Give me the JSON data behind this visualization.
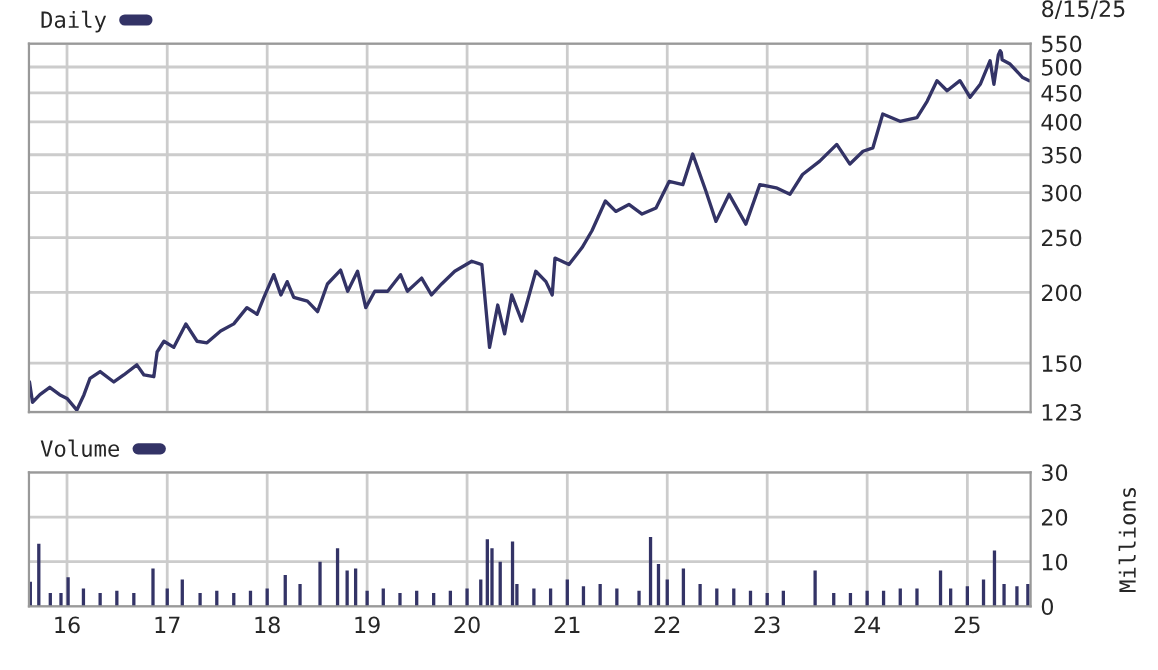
{
  "chart_data": [
    {
      "type": "line",
      "legend": "top left",
      "log": "y",
      "grid": true,
      "tick_labels": "y",
      "marker": "none",
      "line_style": "solid",
      "annotations": [
        "8/15/25"
      ],
      "xlim": [
        "2015-08-15",
        "2025-08-20"
      ],
      "xticks": [
        {
          "value": "2016-01-01",
          "label": null
        },
        {
          "value": "2017-01-01",
          "label": null
        },
        {
          "value": "2018-01-01",
          "label": null
        },
        {
          "value": "2019-01-01",
          "label": null
        },
        {
          "value": "2020-01-01",
          "label": null
        },
        {
          "value": "2021-01-01",
          "label": null
        },
        {
          "value": "2022-01-01",
          "label": null
        },
        {
          "value": "2023-01-01",
          "label": null
        },
        {
          "value": "2024-01-01",
          "label": null
        },
        {
          "value": "2025-01-01",
          "label": null
        }
      ],
      "ylim": [
        123,
        550
      ],
      "yticks": [
        123,
        150,
        200,
        250,
        300,
        350,
        400,
        450,
        500,
        550
      ],
      "series": [
        {
          "name": "Daily",
          "color": "#333366",
          "x": [
            "2015-08-17",
            "2015-08-28",
            "2015-09-24",
            "2015-10-30",
            "2015-12-05",
            "2016-01-01",
            "2016-02-06",
            "2016-03-03",
            "2016-03-25",
            "2016-05-01",
            "2016-06-20",
            "2016-07-26",
            "2016-09-12",
            "2016-10-08",
            "2016-11-13",
            "2016-11-25",
            "2016-12-20",
            "2017-01-25",
            "2017-03-10",
            "2017-04-20",
            "2017-05-26",
            "2017-07-15",
            "2017-09-01",
            "2017-10-19",
            "2017-11-25",
            "2017-12-20",
            "2018-01-25",
            "2018-02-20",
            "2018-03-15",
            "2018-04-08",
            "2018-05-28",
            "2018-07-04",
            "2018-08-09",
            "2018-09-26",
            "2018-10-22",
            "2018-11-27",
            "2018-12-27",
            "2019-01-29",
            "2019-03-17",
            "2019-05-03",
            "2019-05-28",
            "2019-07-19",
            "2019-08-24",
            "2019-09-30",
            "2019-11-17",
            "2020-01-18",
            "2020-02-24",
            "2020-03-23",
            "2020-04-22",
            "2020-05-17",
            "2020-06-12",
            "2020-07-19",
            "2020-09-08",
            "2020-10-15",
            "2020-11-07",
            "2020-11-17",
            "2021-01-07",
            "2021-02-24",
            "2021-04-01",
            "2021-05-20",
            "2021-06-27",
            "2021-08-14",
            "2021-10-01",
            "2021-11-21",
            "2022-01-08",
            "2022-02-27",
            "2022-04-04",
            "2022-05-22",
            "2022-06-28",
            "2022-08-15",
            "2022-10-15",
            "2022-12-05",
            "2023-02-03",
            "2023-03-25",
            "2023-05-10",
            "2023-07-12",
            "2023-09-12",
            "2023-10-30",
            "2023-12-17",
            "2024-01-22",
            "2024-02-27",
            "2024-04-30",
            "2024-07-01",
            "2024-08-07",
            "2024-09-12",
            "2024-10-19",
            "2024-12-05",
            "2025-01-11",
            "2025-02-17",
            "2025-03-25",
            "2025-04-08",
            "2025-04-24",
            "2025-05-01",
            "2025-05-05",
            "2025-05-08",
            "2025-06-06",
            "2025-07-22",
            "2025-08-15"
          ],
          "values": [
            139,
            128,
            132,
            136,
            132,
            130,
            124,
            132,
            141,
            145,
            139,
            143,
            149,
            143,
            142,
            157,
            164,
            160,
            176,
            164,
            163,
            171,
            176,
            188,
            183,
            196,
            215,
            198,
            209,
            196,
            193,
            185,
            207,
            219,
            201,
            218,
            188,
            201,
            201,
            215,
            201,
            212,
            198,
            207,
            218,
            227,
            224,
            160,
            190,
            169,
            198,
            178,
            218,
            209,
            198,
            230,
            224,
            240,
            257,
            290,
            278,
            286,
            275,
            282,
            314,
            310,
            351,
            302,
            267,
            298,
            264,
            310,
            306,
            298,
            323,
            341,
            365,
            337,
            355,
            360,
            413,
            401,
            407,
            435,
            473,
            454,
            473,
            442,
            466,
            513,
            466,
            525,
            534,
            530,
            515,
            506,
            479,
            473
          ]
        }
      ]
    },
    {
      "type": "bar",
      "legend": "top left",
      "grid": true,
      "ylabel": "Millions",
      "xlim": [
        "2015-08-15",
        "2025-08-20"
      ],
      "xticks": [
        {
          "value": "2016-01-01",
          "label": "16"
        },
        {
          "value": "2017-01-01",
          "label": "17"
        },
        {
          "value": "2018-01-01",
          "label": "18"
        },
        {
          "value": "2019-01-01",
          "label": "19"
        },
        {
          "value": "2020-01-01",
          "label": "20"
        },
        {
          "value": "2021-01-01",
          "label": "21"
        },
        {
          "value": "2022-01-01",
          "label": "22"
        },
        {
          "value": "2023-01-01",
          "label": "23"
        },
        {
          "value": "2024-01-01",
          "label": "24"
        },
        {
          "value": "2025-01-01",
          "label": "25"
        }
      ],
      "ylim": [
        0,
        30
      ],
      "yticks": [
        0,
        10,
        20,
        30
      ],
      "series": [
        {
          "name": "Volume",
          "color": "#333366",
          "x": [
            "2015-08-20",
            "2015-09-20",
            "2015-11-01",
            "2015-12-10",
            "2016-01-05",
            "2016-03-01",
            "2016-05-01",
            "2016-07-01",
            "2016-09-01",
            "2016-11-10",
            "2017-01-01",
            "2017-02-25",
            "2017-05-01",
            "2017-07-01",
            "2017-09-01",
            "2017-11-01",
            "2018-01-01",
            "2018-03-08",
            "2018-05-01",
            "2018-07-13",
            "2018-09-15",
            "2018-10-20",
            "2018-11-20",
            "2019-01-01",
            "2019-03-01",
            "2019-05-01",
            "2019-07-01",
            "2019-09-01",
            "2019-11-01",
            "2020-01-01",
            "2020-02-20",
            "2020-03-15",
            "2020-04-01",
            "2020-05-01",
            "2020-06-15",
            "2020-07-01",
            "2020-09-01",
            "2020-11-01",
            "2021-01-01",
            "2021-03-01",
            "2021-05-01",
            "2021-07-01",
            "2021-09-20",
            "2021-11-01",
            "2021-11-30",
            "2022-01-01",
            "2022-03-01",
            "2022-05-01",
            "2022-07-01",
            "2022-09-01",
            "2022-11-01",
            "2023-01-01",
            "2023-03-01",
            "2023-06-25",
            "2023-09-01",
            "2023-11-01",
            "2024-01-01",
            "2024-03-01",
            "2024-05-01",
            "2024-07-01",
            "2024-09-25",
            "2024-11-01",
            "2025-01-01",
            "2025-03-01",
            "2025-04-10",
            "2025-05-15",
            "2025-07-01",
            "2025-08-10"
          ],
          "values": [
            5.5,
            14,
            3,
            3,
            6.5,
            4,
            3,
            3.5,
            3,
            8.5,
            4,
            6,
            3,
            3.5,
            3,
            3.5,
            4,
            7,
            5,
            10,
            13,
            8,
            8.5,
            3.5,
            4,
            3,
            3.5,
            3,
            3.5,
            4,
            6,
            15,
            13,
            10,
            14.5,
            5,
            4,
            4,
            6,
            4.5,
            5,
            4,
            3.5,
            15.5,
            9.5,
            6,
            8.5,
            5,
            4,
            4,
            3.5,
            3,
            3.5,
            8,
            3,
            3,
            3.5,
            3.5,
            4,
            4,
            8,
            4,
            4.5,
            6,
            12.5,
            5,
            4.5,
            5
          ]
        }
      ]
    }
  ]
}
